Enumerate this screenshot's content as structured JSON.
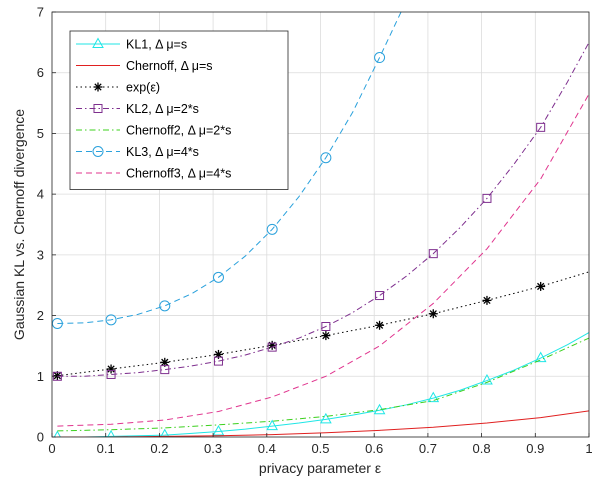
{
  "chart_data": {
    "type": "line",
    "title": "",
    "xlabel": "privacy parameter ε",
    "ylabel": "Gaussian KL vs. Chernoff divergence",
    "xlim": [
      0,
      1
    ],
    "ylim": [
      0,
      7
    ],
    "xticks": [
      "0",
      "0.1",
      "0.2",
      "0.3",
      "0.4",
      "0.5",
      "0.6",
      "0.7",
      "0.8",
      "0.9",
      "1"
    ],
    "yticks": [
      "0",
      "1",
      "2",
      "3",
      "4",
      "5",
      "6",
      "7"
    ],
    "grid": true,
    "legend_position": "top-left",
    "series": [
      {
        "name": "KL1, Δ μ=s",
        "color": "#1fe6e6",
        "dash": "solid",
        "marker": "triangle",
        "x": [
          0.01,
          0.06,
          0.11,
          0.16,
          0.21,
          0.26,
          0.31,
          0.36,
          0.41,
          0.46,
          0.51,
          0.56,
          0.61,
          0.66,
          0.71,
          0.76,
          0.81,
          0.86,
          0.91,
          0.96,
          1.0
        ],
        "values": [
          0.0,
          0.0,
          0.01,
          0.02,
          0.03,
          0.06,
          0.09,
          0.13,
          0.18,
          0.23,
          0.29,
          0.36,
          0.44,
          0.53,
          0.64,
          0.77,
          0.93,
          1.1,
          1.3,
          1.52,
          1.72
        ],
        "marker_x": [
          0.01,
          0.11,
          0.21,
          0.31,
          0.41,
          0.51,
          0.61,
          0.71,
          0.81,
          0.91
        ]
      },
      {
        "name": "Chernoff, Δ μ=s",
        "color": "#e02020",
        "dash": "solid",
        "marker": "none",
        "x": [
          0.01,
          0.11,
          0.21,
          0.31,
          0.41,
          0.51,
          0.61,
          0.71,
          0.81,
          0.91,
          1.0
        ],
        "values": [
          0.0,
          0.0,
          0.01,
          0.02,
          0.04,
          0.07,
          0.11,
          0.16,
          0.23,
          0.32,
          0.43
        ]
      },
      {
        "name": "exp(ε)",
        "color": "#000000",
        "dash": "dotted",
        "marker": "star",
        "x": [
          0.01,
          0.11,
          0.21,
          0.31,
          0.41,
          0.51,
          0.61,
          0.71,
          0.81,
          0.91,
          1.0
        ],
        "values": [
          1.01,
          1.12,
          1.23,
          1.36,
          1.51,
          1.67,
          1.84,
          2.03,
          2.25,
          2.48,
          2.72
        ],
        "marker_x": [
          0.01,
          0.11,
          0.21,
          0.31,
          0.41,
          0.51,
          0.61,
          0.71,
          0.81,
          0.91
        ]
      },
      {
        "name": "KL2, Δ μ=2*s",
        "color": "#7e2f8e",
        "dash": "dashdot",
        "marker": "square",
        "x": [
          0.01,
          0.06,
          0.11,
          0.16,
          0.21,
          0.26,
          0.31,
          0.36,
          0.41,
          0.46,
          0.51,
          0.56,
          0.61,
          0.66,
          0.71,
          0.76,
          0.81,
          0.86,
          0.91,
          0.96,
          1.0
        ],
        "values": [
          1.0,
          1.0,
          1.03,
          1.06,
          1.11,
          1.17,
          1.25,
          1.35,
          1.48,
          1.63,
          1.82,
          2.05,
          2.33,
          2.65,
          3.02,
          3.45,
          3.93,
          4.49,
          5.1,
          5.85,
          6.5
        ],
        "marker_x": [
          0.01,
          0.11,
          0.21,
          0.31,
          0.41,
          0.51,
          0.61,
          0.71,
          0.81,
          0.91
        ]
      },
      {
        "name": "Chernoff2, Δ μ=2*s",
        "color": "#3cd01e",
        "dash": "dashdot",
        "marker": "none",
        "x": [
          0.01,
          0.11,
          0.21,
          0.31,
          0.41,
          0.51,
          0.61,
          0.71,
          0.81,
          0.91,
          1.0
        ],
        "values": [
          0.1,
          0.12,
          0.15,
          0.2,
          0.26,
          0.34,
          0.45,
          0.6,
          0.9,
          1.27,
          1.63
        ]
      },
      {
        "name": "KL3, Δ μ=4*s",
        "color": "#2aa1dc",
        "dash": "dashed",
        "marker": "circle",
        "x": [
          0.01,
          0.06,
          0.11,
          0.16,
          0.21,
          0.26,
          0.31,
          0.36,
          0.41,
          0.46,
          0.51,
          0.56,
          0.61,
          0.65
        ],
        "values": [
          1.87,
          1.88,
          1.93,
          2.02,
          2.16,
          2.36,
          2.63,
          2.98,
          3.42,
          3.96,
          4.6,
          5.35,
          6.25,
          7.0
        ],
        "marker_x": [
          0.01,
          0.11,
          0.21,
          0.31,
          0.41,
          0.51,
          0.61
        ]
      },
      {
        "name": "Chernoff3, Δ μ=4*s",
        "color": "#e0348e",
        "dash": "dashed",
        "marker": "none",
        "x": [
          0.01,
          0.11,
          0.21,
          0.31,
          0.41,
          0.51,
          0.61,
          0.71,
          0.81,
          0.91,
          1.0
        ],
        "values": [
          0.18,
          0.21,
          0.28,
          0.42,
          0.66,
          1.0,
          1.5,
          2.2,
          3.1,
          4.25,
          5.65
        ]
      }
    ]
  }
}
